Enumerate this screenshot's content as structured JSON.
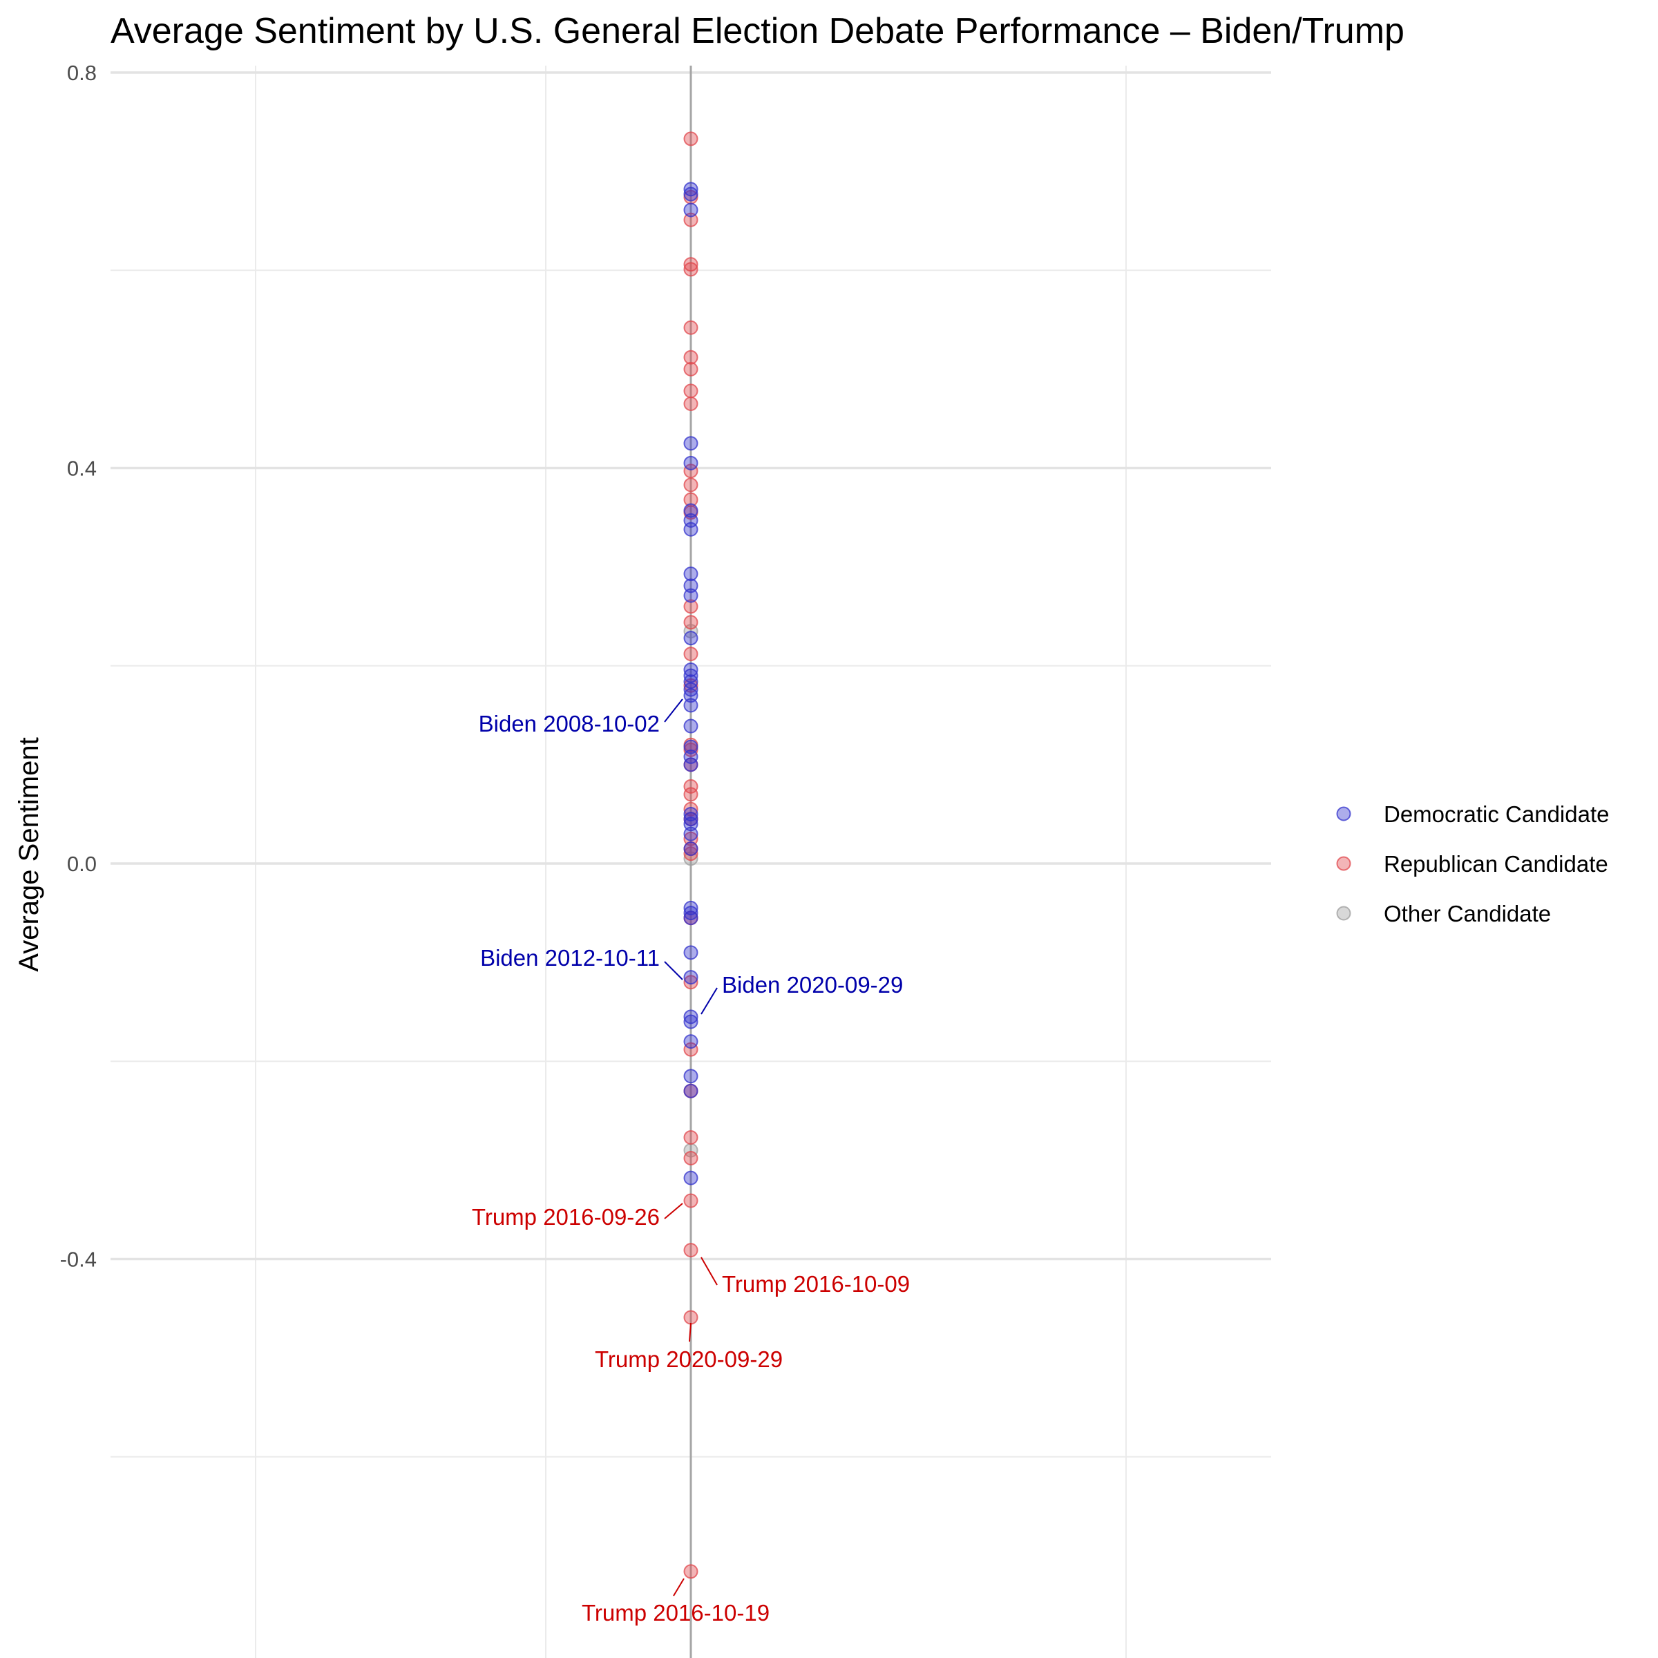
{
  "chart_data": {
    "type": "scatter",
    "title": "Average Sentiment by U.S. General Election Debate Performance – Biden/Trump",
    "xlabel": "",
    "ylabel": "Average Sentiment",
    "ylim": [
      -0.78,
      0.8
    ],
    "yticks": [
      "-0.4",
      "0.0",
      "0.4",
      "0.8"
    ],
    "ytick_values": [
      -0.4,
      0.0,
      0.4,
      0.8
    ],
    "grid": true,
    "legend_position": "right",
    "colors": {
      "democratic": "#3333cc",
      "republican": "#e0474c",
      "other": "#9e9e9e",
      "democratic_label": "#0000aa",
      "republican_label": "#cc0000"
    },
    "series": [
      {
        "name": "Democratic Candidate",
        "key": "democratic",
        "values": [
          0.682,
          0.677,
          0.661,
          0.425,
          0.405,
          0.357,
          0.347,
          0.338,
          0.293,
          0.281,
          0.271,
          0.228,
          0.196,
          0.19,
          0.184,
          0.176,
          0.17,
          0.16,
          0.139,
          0.118,
          0.108,
          0.1,
          0.05,
          0.045,
          0.04,
          0.03,
          0.015,
          -0.045,
          -0.05,
          -0.055,
          -0.09,
          -0.115,
          -0.155,
          -0.16,
          -0.18,
          -0.215,
          -0.23,
          -0.318
        ]
      },
      {
        "name": "Republican Candidate",
        "key": "republican",
        "values": [
          0.733,
          0.674,
          0.651,
          0.606,
          0.601,
          0.542,
          0.512,
          0.5,
          0.478,
          0.465,
          0.397,
          0.383,
          0.368,
          0.355,
          0.26,
          0.244,
          0.212,
          0.18,
          0.12,
          0.115,
          0.1,
          0.078,
          0.07,
          0.055,
          0.045,
          0.025,
          0.015,
          0.01,
          -0.055,
          -0.12,
          -0.188,
          -0.23,
          -0.277,
          -0.298,
          -0.341,
          -0.391,
          -0.459,
          -0.716
        ]
      },
      {
        "name": "Other Candidate",
        "key": "other",
        "values": [
          0.235,
          0.005,
          -0.29
        ]
      }
    ],
    "annotations": [
      {
        "label": "Biden 2008-10-02",
        "y": 0.16,
        "series": "democratic"
      },
      {
        "label": "Biden 2012-10-11",
        "y": -0.115,
        "series": "democratic"
      },
      {
        "label": "Biden 2020-09-29",
        "y": -0.16,
        "series": "democratic"
      },
      {
        "label": "Trump 2016-09-26",
        "y": -0.341,
        "series": "republican"
      },
      {
        "label": "Trump 2016-10-09",
        "y": -0.391,
        "series": "republican"
      },
      {
        "label": "Trump 2020-09-29",
        "y": -0.459,
        "series": "republican"
      },
      {
        "label": "Trump 2016-10-19",
        "y": -0.716,
        "series": "republican"
      }
    ]
  }
}
